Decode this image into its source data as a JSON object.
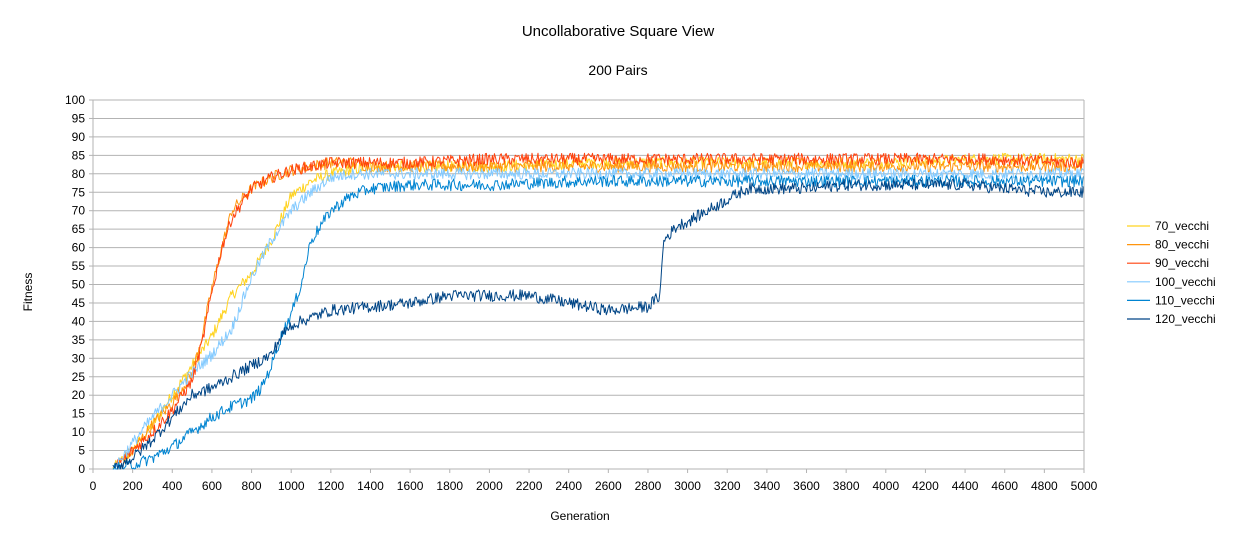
{
  "chart_data": {
    "type": "line",
    "title": "Uncollaborative Square View",
    "subtitle": "200 Pairs",
    "xlabel": "Generation",
    "ylabel": "Fitness",
    "xlim": [
      0,
      5000
    ],
    "ylim": [
      0,
      100
    ],
    "x_ticks": [
      "0",
      "200",
      "400",
      "600",
      "800",
      "1000",
      "1200",
      "1400",
      "1600",
      "1800",
      "2000",
      "2200",
      "2400",
      "2600",
      "2800",
      "3000",
      "3200",
      "3400",
      "3600",
      "3800",
      "4000",
      "4200",
      "4400",
      "4600",
      "4800",
      "5000"
    ],
    "y_ticks": [
      "0",
      "5",
      "10",
      "15",
      "20",
      "25",
      "30",
      "35",
      "40",
      "45",
      "50",
      "55",
      "60",
      "65",
      "70",
      "75",
      "80",
      "85",
      "90",
      "95",
      "100"
    ],
    "grid": "horizontal",
    "legend_position": "right",
    "series": [
      {
        "name": "70_vecchi",
        "color": "#ffd320",
        "x": [
          100,
          200,
          300,
          400,
          500,
          600,
          700,
          800,
          900,
          1000,
          1100,
          1200,
          1300,
          1400,
          1600,
          2000,
          2500,
          3000,
          3500,
          4000,
          4500,
          5000
        ],
        "y": [
          0,
          5,
          12,
          20,
          28,
          36,
          47,
          53,
          62,
          74,
          78,
          80,
          81,
          82,
          82,
          82,
          83,
          83,
          83,
          83,
          84,
          84
        ]
      },
      {
        "name": "80_vecchi",
        "color": "#ff950e",
        "x": [
          100,
          200,
          300,
          400,
          500,
          550,
          600,
          650,
          700,
          800,
          900,
          1000,
          1100,
          1200,
          1300,
          1400,
          1600,
          2000,
          2500,
          3000,
          3500,
          4000,
          4500,
          5000
        ],
        "y": [
          0,
          5,
          12,
          18,
          26,
          36,
          49,
          60,
          70,
          76,
          79,
          81,
          82,
          83,
          83,
          82,
          82,
          82,
          82,
          82,
          82,
          82,
          82,
          82
        ]
      },
      {
        "name": "90_vecchi",
        "color": "#ff420e",
        "x": [
          100,
          200,
          300,
          400,
          500,
          550,
          600,
          650,
          700,
          800,
          900,
          1000,
          1100,
          1200,
          1300,
          1400,
          1600,
          2000,
          2500,
          3000,
          3500,
          4000,
          4500,
          5000
        ],
        "y": [
          0,
          5,
          10,
          16,
          24,
          34,
          48,
          60,
          68,
          76,
          79,
          81,
          82,
          83,
          83,
          83,
          83,
          84,
          84,
          84,
          84,
          84,
          84,
          83
        ]
      },
      {
        "name": "100_vecchi",
        "color": "#83caff",
        "x": [
          100,
          200,
          300,
          400,
          500,
          600,
          700,
          800,
          900,
          1000,
          1100,
          1200,
          1300,
          1400,
          1600,
          2000,
          2500,
          3000,
          3500,
          4000,
          4500,
          5000
        ],
        "y": [
          0,
          7,
          14,
          20,
          26,
          31,
          38,
          52,
          62,
          70,
          75,
          79,
          80,
          80,
          80,
          80,
          80,
          80,
          80,
          80,
          80,
          80
        ]
      },
      {
        "name": "110_vecchi",
        "color": "#0084d1",
        "x": [
          100,
          200,
          300,
          400,
          500,
          600,
          700,
          800,
          850,
          900,
          950,
          1000,
          1050,
          1100,
          1200,
          1300,
          1400,
          1600,
          2000,
          2500,
          3000,
          3500,
          4000,
          4500,
          5000
        ],
        "y": [
          0,
          1,
          3,
          6,
          10,
          14,
          17,
          19,
          22,
          28,
          36,
          42,
          50,
          62,
          70,
          74,
          76,
          77,
          77,
          78,
          78,
          78,
          78,
          78,
          78
        ]
      },
      {
        "name": "120_vecchi",
        "color": "#004586",
        "x": [
          100,
          200,
          300,
          400,
          500,
          600,
          700,
          800,
          900,
          950,
          1000,
          1100,
          1200,
          1400,
          1600,
          1800,
          2000,
          2200,
          2400,
          2600,
          2800,
          2860,
          2880,
          2950,
          3000,
          3100,
          3200,
          3300,
          3400,
          3600,
          3800,
          4000,
          4400,
          4800,
          5000
        ],
        "y": [
          0,
          3,
          8,
          14,
          20,
          22,
          25,
          28,
          31,
          36,
          39,
          41,
          43,
          44,
          45,
          47,
          47,
          47,
          45,
          43,
          44,
          47,
          62,
          66,
          67,
          70,
          73,
          76,
          76,
          76,
          77,
          77,
          77,
          75,
          75
        ]
      }
    ]
  }
}
